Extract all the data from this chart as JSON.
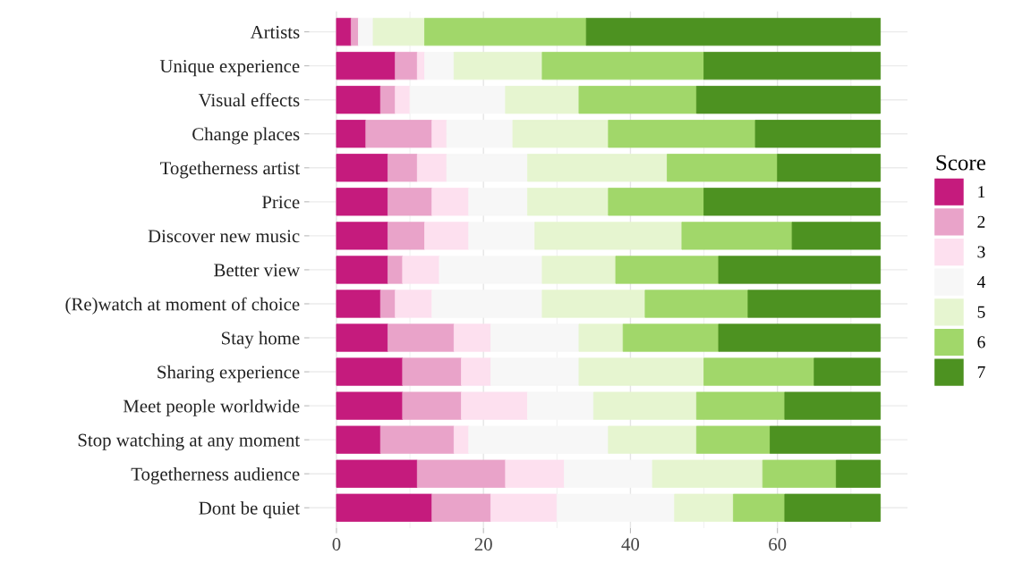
{
  "chart_data": {
    "type": "bar",
    "orientation": "horizontal",
    "stacked": true,
    "categories": [
      "Artists",
      "Unique experience",
      "Visual effects",
      "Change places",
      "Togetherness artist",
      "Price",
      "Discover new music",
      "Better view",
      "(Re)watch at moment of choice",
      "Stay home",
      "Sharing experience",
      "Meet people worldwide",
      "Stop watching at any moment",
      "Togetherness audience",
      "Dont be quiet"
    ],
    "series": [
      {
        "name": "1",
        "color": "#c51b7d",
        "values": [
          2,
          8,
          6,
          4,
          7,
          7,
          7,
          7,
          6,
          7,
          9,
          9,
          6,
          11,
          13
        ]
      },
      {
        "name": "2",
        "color": "#e9a3c9",
        "values": [
          1,
          3,
          2,
          9,
          4,
          6,
          5,
          2,
          2,
          9,
          8,
          8,
          10,
          12,
          8
        ]
      },
      {
        "name": "3",
        "color": "#fde0ef",
        "values": [
          0,
          1,
          2,
          2,
          4,
          5,
          6,
          5,
          5,
          5,
          4,
          9,
          2,
          8,
          9
        ]
      },
      {
        "name": "4",
        "color": "#f7f7f7",
        "values": [
          2,
          4,
          13,
          9,
          11,
          8,
          9,
          14,
          15,
          12,
          12,
          9,
          19,
          12,
          16
        ]
      },
      {
        "name": "5",
        "color": "#e6f5d0",
        "values": [
          7,
          12,
          10,
          13,
          19,
          11,
          20,
          10,
          14,
          6,
          17,
          14,
          12,
          15,
          8
        ]
      },
      {
        "name": "6",
        "color": "#a1d76a",
        "values": [
          22,
          22,
          16,
          20,
          15,
          13,
          15,
          14,
          14,
          13,
          15,
          12,
          10,
          10,
          7
        ]
      },
      {
        "name": "7",
        "color": "#4d9221",
        "values": [
          40,
          24,
          25,
          17,
          14,
          24,
          12,
          22,
          18,
          22,
          9,
          13,
          15,
          6,
          13
        ]
      }
    ],
    "xlim": [
      -3.7,
      77.7
    ],
    "xticks": [
      0,
      20,
      40,
      60
    ],
    "grid": true,
    "legend": "right",
    "legend_title": "Score"
  }
}
